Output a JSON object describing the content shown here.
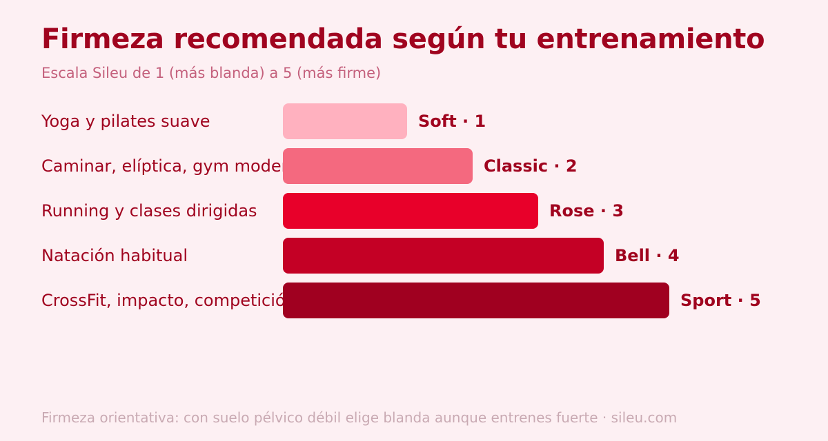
{
  "title": "Firmeza recomendada según tu entrenamiento",
  "subtitle": "Escala Sileu de 1 (más blanda) a 5 (más firme)",
  "footer": "Firmeza orientativa: con suelo pélvico débil elige blanda aunque entrenes fuerte · sileu.com",
  "colors": {
    "background": "#fdf0f3",
    "accent": "#a0041f",
    "bars": [
      "#ffb1bf",
      "#f4697f",
      "#e8002a",
      "#c40025",
      "#a00020"
    ]
  },
  "chart_data": {
    "type": "bar",
    "orientation": "horizontal",
    "categories": [
      "Yoga y pilates suave",
      "Caminar, elíptica, gym moderado",
      "Running y clases dirigidas",
      "Natación habitual",
      "CrossFit, impacto, competición"
    ],
    "values": [
      1,
      2,
      3,
      4,
      5
    ],
    "value_labels": [
      "Soft · 1",
      "Classic · 2",
      "Rose · 3",
      "Bell · 4",
      "Sport · 5"
    ],
    "xlim": [
      0,
      5
    ],
    "grid": false
  }
}
